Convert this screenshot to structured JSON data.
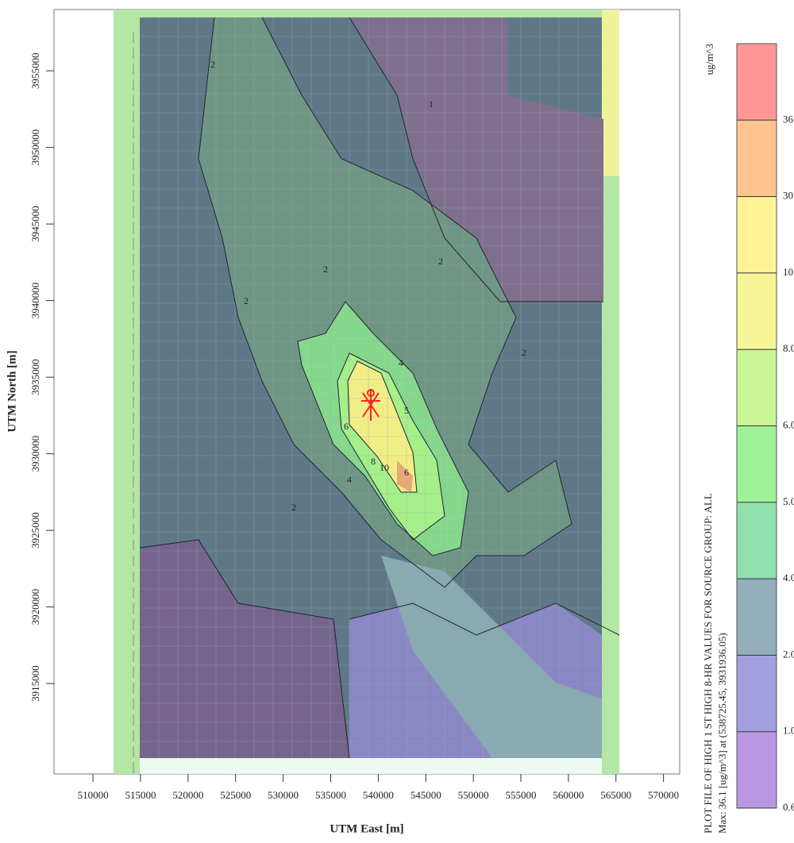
{
  "chart_data": {
    "type": "contour",
    "title": "PLOT FILE OF HIGH 1 ST HIGH 8-HR VALUES FOR SOURCE GROUP: ALL",
    "subtitle": "Max: 36.1 [ug/m^3] at (538725.45, 3931936.05)",
    "x_label": "UTM East [m]",
    "y_label": "UTM North [m]",
    "xlim": [
      505900,
      571700
    ],
    "ylim": [
      3909100,
      3959000
    ],
    "xticks": [
      510000,
      515000,
      520000,
      525000,
      530000,
      535000,
      540000,
      545000,
      550000,
      555000,
      560000,
      565000,
      570000
    ],
    "yticks": [
      3915000,
      3920000,
      3925000,
      3930000,
      3935000,
      3940000,
      3945000,
      3950000,
      3955000
    ],
    "colorbar": {
      "unit": "ug/m^3",
      "levels": [
        0.6,
        {
          "value": 1,
          "label": "1.0"
        },
        {
          "value": 2,
          "label": "2.0"
        },
        {
          "value": 4,
          "label": "4.0"
        },
        {
          "value": 5,
          "label": "5.0"
        },
        {
          "value": 6,
          "label": "6.0"
        },
        {
          "value": 8,
          "label": "8.0"
        },
        {
          "value": 10,
          "label": "10.0"
        },
        {
          "value": 30,
          "label": "30.0"
        },
        36.1
      ],
      "colors": [
        "#b48ce0",
        "#9a96dc",
        "#86a6b4",
        "#84dca4",
        "#94f08c",
        "#c4f488",
        "#f6f48c",
        "#fff28a",
        "#ffbc84",
        "#ff8c8c"
      ]
    },
    "annotations": [
      "2",
      "1",
      "2",
      "2",
      "2",
      "4",
      "5",
      "6",
      "8",
      "10",
      "6",
      "4",
      "2",
      "2"
    ]
  }
}
